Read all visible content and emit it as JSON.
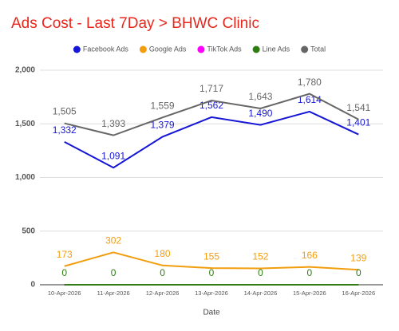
{
  "chart_data": {
    "type": "line",
    "title": "Ads Cost - Last 7Day > BHWC Clinic",
    "x_label": "Date",
    "categories": [
      "10-Apr-2026",
      "11-Apr-2026",
      "12-Apr-2026",
      "13-Apr-2026",
      "14-Apr-2026",
      "15-Apr-2026",
      "16-Apr-2026"
    ],
    "series": [
      {
        "name": "Facebook Ads",
        "color": "#1515d6",
        "values": [
          1332,
          1091,
          1379,
          1562,
          1490,
          1614,
          1401
        ],
        "value_labels": [
          "1,332",
          "1,091",
          "1,379",
          "1,562",
          "1,490",
          "1,614",
          "1,401"
        ],
        "data_labels": true
      },
      {
        "name": "Google Ads",
        "color": "#f29d0e",
        "values": [
          173,
          302,
          180,
          155,
          152,
          166,
          139
        ],
        "data_labels": true
      },
      {
        "name": "TikTok Ads",
        "color": "#ff00ff",
        "values": [
          0,
          0,
          0,
          0,
          0,
          0,
          0
        ],
        "data_labels": false
      },
      {
        "name": "Line Ads",
        "color": "#2e7d12",
        "values": [
          0,
          0,
          0,
          0,
          0,
          0,
          0
        ],
        "data_labels": true
      },
      {
        "name": "Total",
        "color": "#666666",
        "values": [
          1505,
          1393,
          1559,
          1717,
          1643,
          1780,
          1541
        ],
        "value_labels": [
          "1,505",
          "1,393",
          "1,559",
          "1,717",
          "1,643",
          "1,780",
          "1,541"
        ],
        "data_labels": true
      }
    ],
    "ylim": [
      0,
      2000
    ],
    "yticks": [
      0,
      500,
      {
        "value": 1000,
        "label": "1,000"
      },
      {
        "value": 1500,
        "label": "1,500"
      },
      {
        "value": 2000,
        "label": "2,000"
      }
    ],
    "grid": true,
    "legend": "top"
  }
}
